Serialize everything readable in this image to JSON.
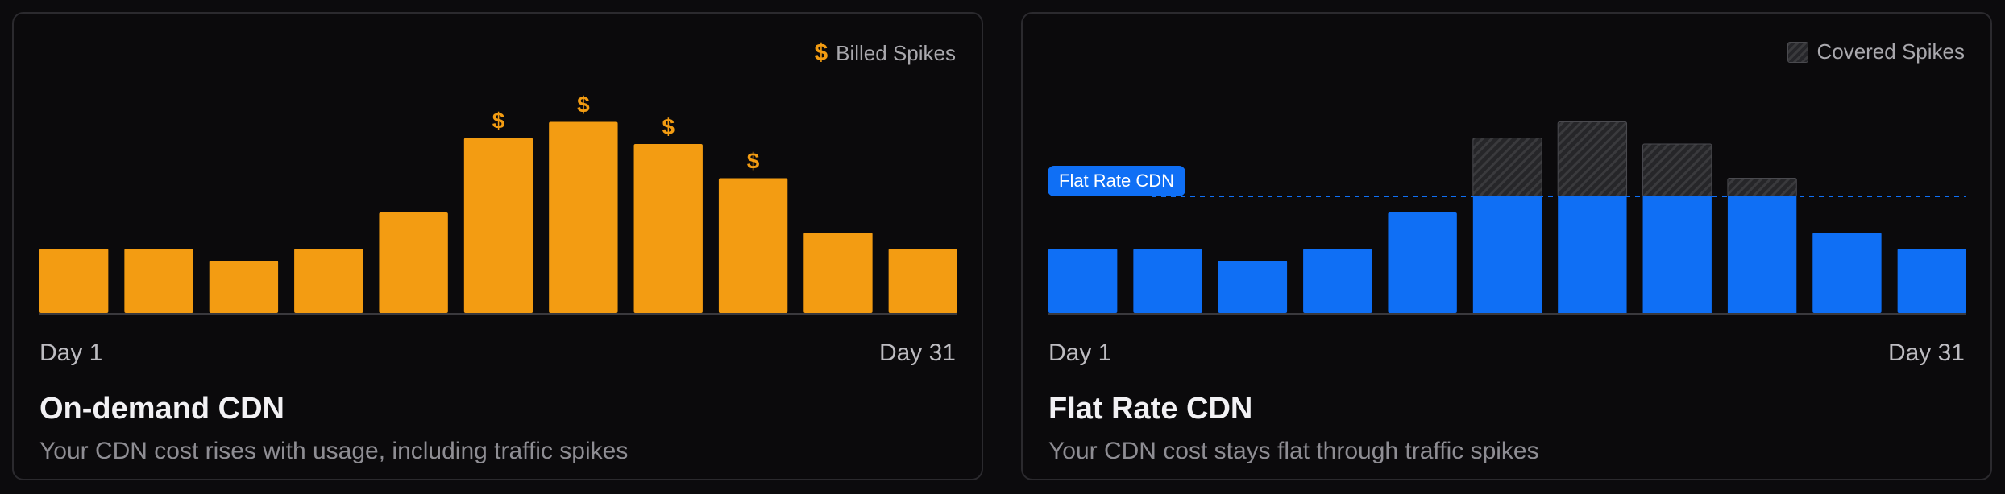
{
  "colors": {
    "ondemand_bar": "#f39c12",
    "flat_bar": "#0f6ff5",
    "covered_hatch": "#3a3a3d",
    "flat_line": "#0f6ff5"
  },
  "ondemand": {
    "legend_label": "Billed Spikes",
    "legend_icon": "dollar-icon",
    "marker_symbol": "$",
    "x_start": "Day 1",
    "x_end": "Day 31",
    "title": "On-demand CDN",
    "subtitle": "Your CDN cost rises with usage, including traffic spikes"
  },
  "flat": {
    "legend_label": "Covered Spikes",
    "legend_icon": "hatched-square-icon",
    "badge_label": "Flat Rate CDN",
    "x_start": "Day 1",
    "x_end": "Day 31",
    "title": "Flat Rate CDN",
    "subtitle": "Your CDN cost stays flat through traffic spikes"
  },
  "chart_data": [
    {
      "type": "bar",
      "title": "On-demand CDN",
      "xlabel": "",
      "ylabel": "",
      "x_range": [
        "Day 1",
        "Day 31"
      ],
      "values": [
        32,
        32,
        26,
        32,
        50,
        87,
        95,
        84,
        67,
        40,
        32
      ],
      "billed_spike": [
        false,
        false,
        false,
        false,
        false,
        true,
        true,
        true,
        true,
        false,
        false
      ],
      "ylim": [
        0,
        100
      ],
      "legend": "top-right",
      "grid": false
    },
    {
      "type": "bar",
      "title": "Flat Rate CDN",
      "xlabel": "",
      "ylabel": "",
      "x_range": [
        "Day 1",
        "Day 31"
      ],
      "values": [
        32,
        32,
        26,
        32,
        50,
        87,
        95,
        84,
        67,
        40,
        32
      ],
      "flat_rate": 58,
      "ylim": [
        0,
        100
      ],
      "legend": "top-right",
      "grid": false
    }
  ]
}
